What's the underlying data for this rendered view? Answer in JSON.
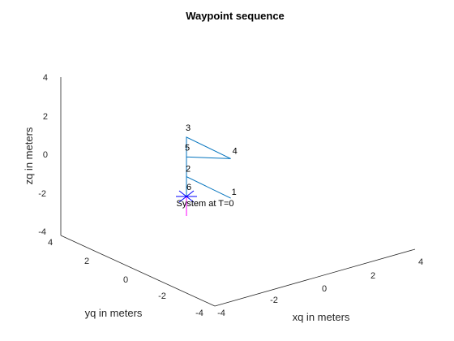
{
  "chart_data": {
    "type": "line3d",
    "title": "Waypoint sequence",
    "xlabel": "xq in meters",
    "ylabel": "yq in meters",
    "zlabel": "zq in meters",
    "xlim": [
      -4,
      4
    ],
    "ylim": [
      -4,
      4
    ],
    "zlim": [
      -4,
      4
    ],
    "xticks": [
      "-4",
      "-2",
      "0",
      "2",
      "4"
    ],
    "yticks": [
      "4",
      "2",
      "0",
      "-2",
      "-4"
    ],
    "zticks": [
      "4",
      "2",
      "0",
      "-2",
      "-4"
    ],
    "grid": false,
    "waypoints": [
      {
        "label": "1",
        "x": 2,
        "y": -2,
        "z": 0
      },
      {
        "label": "2",
        "x": 0,
        "y": 0,
        "z": 1
      },
      {
        "label": "3",
        "x": 0,
        "y": 0,
        "z": 3
      },
      {
        "label": "4",
        "x": 2,
        "y": -2,
        "z": 2
      },
      {
        "label": "5",
        "x": 0,
        "y": 0,
        "z": 2
      },
      {
        "label": "6",
        "x": 0,
        "y": 0,
        "z": 0
      }
    ],
    "series_color": "#0072BD",
    "system_marker": {
      "label": "System at T=0",
      "x": 0,
      "y": 0,
      "z": 0,
      "marker_color": "#0000FF",
      "segment_color": "#FF00FF"
    }
  }
}
